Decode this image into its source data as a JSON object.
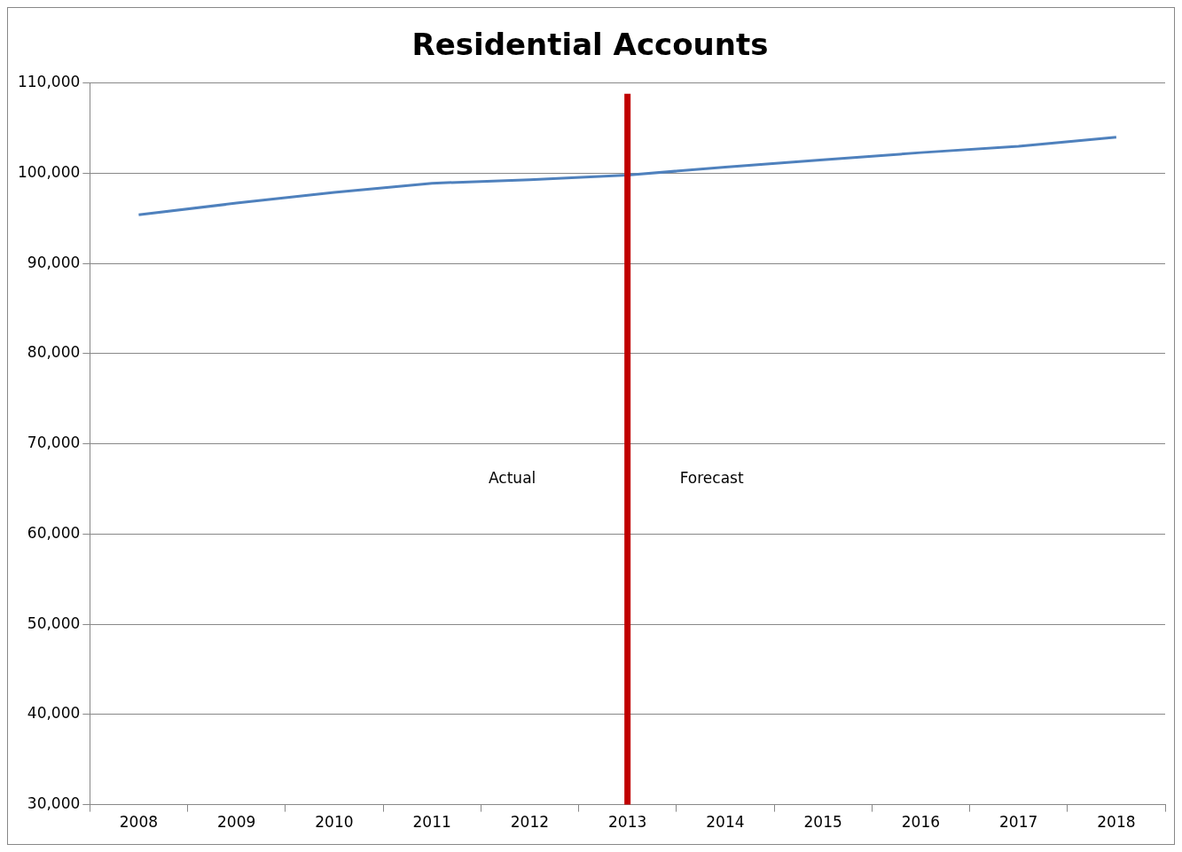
{
  "chart_data": {
    "type": "line",
    "title": "Residential Accounts",
    "categories": [
      "2008",
      "2009",
      "2010",
      "2011",
      "2012",
      "2013",
      "2014",
      "2015",
      "2016",
      "2017",
      "2018"
    ],
    "series": [
      {
        "color": "#4f81bd",
        "values": [
          95400,
          96700,
          97900,
          98900,
          99300,
          99800,
          100700,
          101500,
          102300,
          103000,
          104000
        ]
      }
    ],
    "ylim": [
      30000,
      110000
    ],
    "yticks": [
      {
        "value": 30000,
        "label": "30,000"
      },
      {
        "value": 40000,
        "label": "40,000"
      },
      {
        "value": 50000,
        "label": "50,000"
      },
      {
        "value": 60000,
        "label": "60,000"
      },
      {
        "value": 70000,
        "label": "70,000"
      },
      {
        "value": 80000,
        "label": "80,000"
      },
      {
        "value": 90000,
        "label": "90,000"
      },
      {
        "value": 100000,
        "label": "100,000"
      },
      {
        "value": 110000,
        "label": "110,000"
      }
    ],
    "grid": "y",
    "legend": false,
    "marker": "none",
    "line_style": "solid",
    "ref_lines": [
      {
        "axis": "x",
        "value": "2013",
        "color": "#c00000"
      }
    ],
    "annotations": [
      "Actual",
      "Forecast"
    ]
  }
}
